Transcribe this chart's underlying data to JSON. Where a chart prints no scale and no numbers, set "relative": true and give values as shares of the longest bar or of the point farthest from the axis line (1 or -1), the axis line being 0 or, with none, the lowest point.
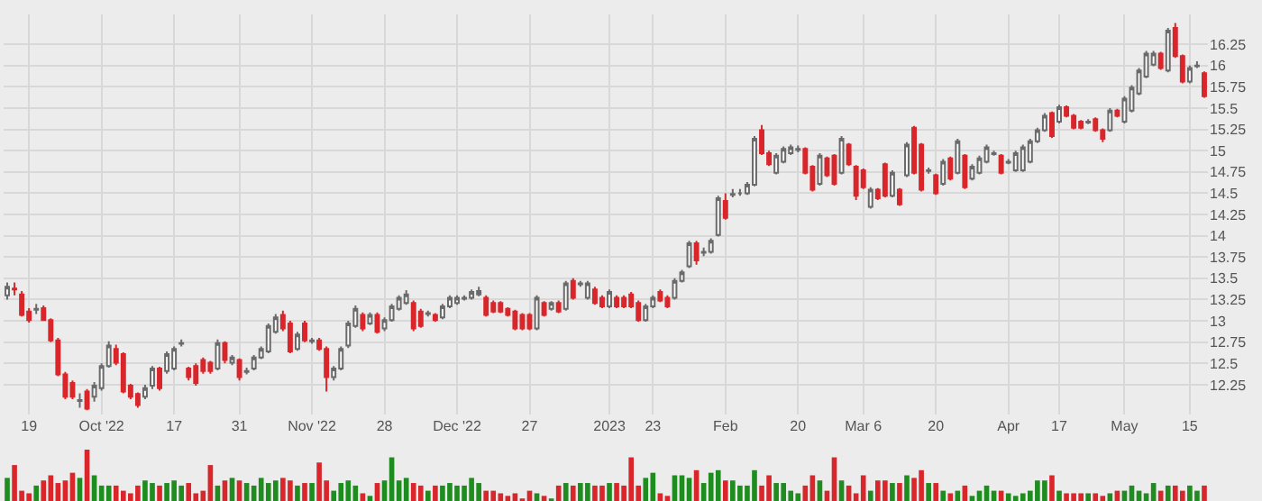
{
  "chart_data": [
    {
      "type": "candlestick",
      "grid": true,
      "legend": false,
      "categories": [
        null,
        null,
        null,
        "19",
        null,
        null,
        null,
        null,
        null,
        null,
        null,
        null,
        null,
        "Oct '22",
        null,
        null,
        null,
        null,
        null,
        null,
        null,
        null,
        null,
        "17",
        null,
        null,
        null,
        null,
        null,
        null,
        null,
        null,
        "31",
        null,
        null,
        null,
        null,
        null,
        null,
        null,
        null,
        null,
        "Nov '22",
        null,
        null,
        null,
        null,
        null,
        null,
        null,
        null,
        null,
        "28",
        null,
        null,
        null,
        null,
        null,
        null,
        null,
        null,
        null,
        "Dec '22",
        null,
        null,
        null,
        null,
        null,
        null,
        null,
        null,
        null,
        "27",
        null,
        null,
        null,
        null,
        null,
        null,
        null,
        null,
        null,
        null,
        "2023",
        null,
        null,
        null,
        null,
        null,
        "23",
        null,
        null,
        null,
        null,
        null,
        null,
        null,
        null,
        null,
        "Feb",
        null,
        null,
        null,
        null,
        null,
        null,
        null,
        null,
        null,
        "20",
        null,
        null,
        null,
        null,
        null,
        null,
        null,
        null,
        "Mar 6",
        null,
        null,
        null,
        null,
        null,
        null,
        null,
        null,
        null,
        "20",
        null,
        null,
        null,
        null,
        null,
        null,
        null,
        null,
        null,
        "Apr",
        null,
        null,
        null,
        null,
        null,
        null,
        "17",
        null,
        null,
        null,
        null,
        null,
        null,
        null,
        null,
        "May",
        null,
        null,
        null,
        null,
        null,
        null,
        null,
        null,
        "15",
        null,
        null
      ],
      "ylim": [
        11.9,
        16.6
      ],
      "yticks": [
        12.25,
        12.5,
        12.75,
        13,
        13.25,
        13.5,
        13.75,
        14,
        14.25,
        14.5,
        14.75,
        15,
        15.25,
        15.5,
        15.75,
        16,
        16.25
      ],
      "ohlc": [
        [
          13.3,
          13.45,
          13.25,
          13.4
        ],
        [
          13.38,
          13.45,
          13.3,
          13.37
        ],
        [
          13.31,
          13.35,
          13.05,
          13.07
        ],
        [
          13.11,
          13.15,
          12.98,
          13.01
        ],
        [
          13.13,
          13.2,
          13.08,
          13.14
        ],
        [
          13.15,
          13.18,
          13.0,
          13.01
        ],
        [
          13.01,
          13.03,
          12.75,
          12.77
        ],
        [
          12.77,
          12.8,
          12.35,
          12.37
        ],
        [
          12.37,
          12.4,
          12.08,
          12.11
        ],
        [
          12.27,
          12.3,
          12.08,
          12.11
        ],
        [
          12.06,
          12.15,
          11.98,
          12.07
        ],
        [
          12.17,
          12.2,
          11.95,
          11.97
        ],
        [
          12.11,
          12.28,
          12.05,
          12.24
        ],
        [
          12.21,
          12.5,
          12.18,
          12.47
        ],
        [
          12.47,
          12.76,
          12.45,
          12.71
        ],
        [
          12.67,
          12.72,
          12.48,
          12.51
        ],
        [
          12.61,
          12.63,
          12.15,
          12.17
        ],
        [
          12.24,
          12.26,
          12.08,
          12.11
        ],
        [
          12.14,
          12.16,
          11.98,
          12.01
        ],
        [
          12.11,
          12.25,
          12.08,
          12.21
        ],
        [
          12.24,
          12.47,
          12.2,
          12.44
        ],
        [
          12.44,
          12.46,
          12.18,
          12.21
        ],
        [
          12.41,
          12.64,
          12.38,
          12.61
        ],
        [
          12.44,
          12.7,
          12.42,
          12.67
        ],
        [
          12.73,
          12.78,
          12.7,
          12.74
        ],
        [
          12.44,
          12.46,
          12.3,
          12.34
        ],
        [
          12.47,
          12.5,
          12.24,
          12.27
        ],
        [
          12.54,
          12.57,
          12.38,
          12.41
        ],
        [
          12.51,
          12.53,
          12.38,
          12.41
        ],
        [
          12.44,
          12.78,
          12.42,
          12.74
        ],
        [
          12.74,
          12.76,
          12.5,
          12.54
        ],
        [
          12.51,
          12.6,
          12.48,
          12.57
        ],
        [
          12.54,
          12.56,
          12.3,
          12.34
        ],
        [
          12.4,
          12.45,
          12.37,
          12.41
        ],
        [
          12.44,
          12.6,
          12.42,
          12.57
        ],
        [
          12.57,
          12.7,
          12.55,
          12.67
        ],
        [
          12.64,
          12.97,
          12.62,
          12.94
        ],
        [
          12.87,
          13.08,
          12.85,
          13.04
        ],
        [
          13.07,
          13.12,
          12.88,
          12.91
        ],
        [
          12.97,
          13.0,
          12.62,
          12.64
        ],
        [
          12.67,
          12.87,
          12.65,
          12.84
        ],
        [
          12.97,
          13.0,
          12.75,
          12.77
        ],
        [
          12.76,
          12.8,
          12.73,
          12.77
        ],
        [
          12.77,
          12.8,
          12.65,
          12.67
        ],
        [
          12.67,
          12.7,
          12.17,
          12.34
        ],
        [
          12.34,
          12.47,
          12.3,
          12.44
        ],
        [
          12.44,
          12.7,
          12.42,
          12.67
        ],
        [
          12.71,
          13.0,
          12.68,
          12.97
        ],
        [
          12.94,
          13.18,
          12.92,
          13.14
        ],
        [
          13.07,
          13.1,
          12.88,
          12.91
        ],
        [
          12.97,
          13.1,
          12.95,
          13.07
        ],
        [
          13.07,
          13.1,
          12.85,
          12.87
        ],
        [
          12.91,
          13.04,
          12.88,
          13.01
        ],
        [
          13.01,
          13.2,
          12.99,
          13.17
        ],
        [
          13.14,
          13.3,
          13.12,
          13.27
        ],
        [
          13.21,
          13.36,
          13.19,
          13.31
        ],
        [
          13.21,
          13.24,
          12.88,
          12.91
        ],
        [
          13.11,
          13.14,
          12.92,
          12.94
        ],
        [
          13.08,
          13.12,
          13.05,
          13.09
        ],
        [
          13.07,
          13.09,
          12.99,
          13.01
        ],
        [
          13.04,
          13.2,
          13.02,
          13.17
        ],
        [
          13.17,
          13.3,
          13.15,
          13.27
        ],
        [
          13.21,
          13.3,
          13.19,
          13.27
        ],
        [
          13.26,
          13.3,
          13.24,
          13.27
        ],
        [
          13.27,
          13.37,
          13.25,
          13.34
        ],
        [
          13.31,
          13.4,
          13.29,
          13.35
        ],
        [
          13.27,
          13.3,
          13.05,
          13.07
        ],
        [
          13.21,
          13.24,
          13.09,
          13.11
        ],
        [
          13.21,
          13.23,
          13.09,
          13.11
        ],
        [
          13.14,
          13.16,
          13.05,
          13.07
        ],
        [
          13.11,
          13.13,
          12.89,
          12.91
        ],
        [
          13.07,
          13.09,
          12.89,
          12.91
        ],
        [
          13.07,
          13.09,
          12.89,
          12.91
        ],
        [
          12.91,
          13.3,
          12.89,
          13.27
        ],
        [
          13.21,
          13.23,
          13.05,
          13.07
        ],
        [
          13.14,
          13.23,
          13.12,
          13.21
        ],
        [
          13.21,
          13.24,
          13.09,
          13.11
        ],
        [
          13.14,
          13.47,
          13.12,
          13.44
        ],
        [
          13.47,
          13.5,
          13.25,
          13.27
        ],
        [
          13.43,
          13.47,
          13.4,
          13.44
        ],
        [
          13.27,
          13.47,
          13.25,
          13.44
        ],
        [
          13.37,
          13.4,
          13.19,
          13.21
        ],
        [
          13.27,
          13.3,
          13.15,
          13.17
        ],
        [
          13.17,
          13.37,
          13.15,
          13.34
        ],
        [
          13.27,
          13.3,
          13.15,
          13.17
        ],
        [
          13.27,
          13.3,
          13.15,
          13.17
        ],
        [
          13.31,
          13.34,
          13.15,
          13.17
        ],
        [
          13.21,
          13.24,
          12.99,
          13.01
        ],
        [
          13.01,
          13.2,
          12.99,
          13.17
        ],
        [
          13.17,
          13.3,
          13.15,
          13.27
        ],
        [
          13.34,
          13.37,
          13.22,
          13.24
        ],
        [
          13.27,
          13.3,
          13.15,
          13.17
        ],
        [
          13.27,
          13.5,
          13.25,
          13.47
        ],
        [
          13.47,
          13.6,
          13.45,
          13.57
        ],
        [
          13.64,
          13.94,
          13.62,
          13.91
        ],
        [
          13.91,
          13.94,
          13.66,
          13.71
        ],
        [
          13.8,
          13.86,
          13.76,
          13.81
        ],
        [
          13.81,
          13.97,
          13.79,
          13.94
        ],
        [
          14.01,
          14.47,
          13.99,
          14.44
        ],
        [
          14.41,
          14.5,
          14.19,
          14.21
        ],
        [
          14.48,
          14.55,
          14.45,
          14.49
        ],
        [
          14.5,
          14.55,
          14.47,
          14.5
        ],
        [
          14.5,
          14.63,
          14.48,
          14.6
        ],
        [
          14.6,
          15.17,
          14.58,
          15.14
        ],
        [
          15.24,
          15.3,
          14.95,
          14.97
        ],
        [
          14.97,
          15.0,
          14.82,
          14.84
        ],
        [
          14.74,
          14.97,
          14.72,
          14.94
        ],
        [
          14.87,
          15.05,
          14.85,
          15.02
        ],
        [
          14.97,
          15.07,
          14.95,
          15.04
        ],
        [
          15.01,
          15.06,
          14.98,
          15.02
        ],
        [
          15.02,
          15.04,
          14.72,
          14.74
        ],
        [
          14.81,
          14.83,
          14.52,
          14.54
        ],
        [
          14.61,
          14.97,
          14.59,
          14.94
        ],
        [
          14.91,
          14.93,
          14.69,
          14.71
        ],
        [
          14.94,
          14.96,
          14.59,
          14.61
        ],
        [
          14.74,
          15.17,
          14.72,
          15.14
        ],
        [
          15.07,
          15.09,
          14.82,
          14.84
        ],
        [
          14.81,
          14.83,
          14.42,
          14.47
        ],
        [
          14.77,
          14.79,
          14.55,
          14.57
        ],
        [
          14.34,
          14.57,
          14.32,
          14.54
        ],
        [
          14.54,
          14.56,
          14.42,
          14.44
        ],
        [
          14.84,
          14.86,
          14.45,
          14.47
        ],
        [
          14.47,
          14.77,
          14.45,
          14.74
        ],
        [
          14.54,
          14.56,
          14.35,
          14.37
        ],
        [
          14.71,
          15.1,
          14.69,
          15.07
        ],
        [
          15.27,
          15.29,
          14.72,
          14.74
        ],
        [
          15.07,
          15.09,
          14.52,
          14.54
        ],
        [
          14.76,
          14.8,
          14.73,
          14.77
        ],
        [
          14.71,
          14.73,
          14.48,
          14.5
        ],
        [
          14.61,
          14.9,
          14.59,
          14.87
        ],
        [
          14.91,
          14.93,
          14.65,
          14.67
        ],
        [
          14.74,
          15.14,
          14.72,
          15.11
        ],
        [
          14.94,
          14.96,
          14.55,
          14.57
        ],
        [
          14.67,
          14.84,
          14.65,
          14.81
        ],
        [
          14.74,
          14.94,
          14.72,
          14.91
        ],
        [
          14.87,
          15.07,
          14.85,
          15.04
        ],
        [
          14.96,
          15.0,
          14.94,
          14.97
        ],
        [
          14.94,
          14.96,
          14.72,
          14.74
        ],
        [
          14.86,
          14.9,
          14.84,
          14.87
        ],
        [
          14.77,
          15.0,
          14.75,
          14.97
        ],
        [
          14.77,
          15.07,
          14.75,
          15.04
        ],
        [
          14.87,
          15.14,
          14.85,
          15.11
        ],
        [
          15.11,
          15.27,
          15.09,
          15.24
        ],
        [
          15.24,
          15.44,
          15.22,
          15.41
        ],
        [
          15.44,
          15.46,
          15.15,
          15.17
        ],
        [
          15.34,
          15.54,
          15.32,
          15.51
        ],
        [
          15.51,
          15.53,
          15.39,
          15.41
        ],
        [
          15.41,
          15.43,
          15.25,
          15.27
        ],
        [
          15.34,
          15.36,
          15.25,
          15.27
        ],
        [
          15.33,
          15.37,
          15.31,
          15.34
        ],
        [
          15.37,
          15.39,
          15.22,
          15.24
        ],
        [
          15.24,
          15.26,
          15.1,
          15.14
        ],
        [
          15.24,
          15.5,
          15.22,
          15.47
        ],
        [
          15.47,
          15.49,
          15.39,
          15.41
        ],
        [
          15.34,
          15.64,
          15.32,
          15.61
        ],
        [
          15.47,
          15.77,
          15.45,
          15.74
        ],
        [
          15.67,
          15.97,
          15.65,
          15.94
        ],
        [
          15.87,
          16.17,
          15.85,
          16.14
        ],
        [
          16.01,
          16.17,
          15.99,
          16.14
        ],
        [
          16.14,
          16.16,
          15.95,
          15.97
        ],
        [
          15.94,
          16.44,
          15.92,
          16.41
        ],
        [
          16.44,
          16.5,
          16.09,
          16.11
        ],
        [
          16.11,
          16.13,
          15.79,
          15.81
        ],
        [
          15.81,
          16.0,
          15.79,
          15.97
        ],
        [
          15.99,
          16.05,
          15.97,
          16.0
        ],
        [
          15.91,
          15.93,
          15.62,
          15.64
        ]
      ]
    },
    {
      "type": "bar",
      "relative": true,
      "categories": [
        null,
        null,
        null,
        null,
        null,
        null,
        null,
        null,
        null,
        null,
        null,
        null,
        null,
        null,
        null,
        null,
        null,
        null,
        null,
        null,
        null,
        null,
        null,
        null,
        null,
        null,
        null,
        null,
        null,
        null,
        null,
        null,
        null,
        null,
        null,
        null,
        null,
        null,
        null,
        null,
        null,
        null,
        null,
        null,
        null,
        null,
        null,
        null,
        null,
        null,
        null,
        null,
        null,
        null,
        null,
        null,
        null,
        null,
        null,
        null,
        null,
        null,
        null,
        null,
        null,
        null,
        null,
        null,
        null,
        null,
        null,
        null,
        null,
        null,
        null,
        null,
        null,
        null,
        null,
        null,
        null,
        null,
        null,
        null,
        null,
        null,
        null,
        null,
        null,
        null,
        null,
        null,
        null,
        null,
        null,
        null,
        null,
        null,
        null,
        null,
        null,
        null,
        null,
        null,
        null,
        null,
        null,
        null,
        null,
        null,
        null,
        null,
        null,
        null,
        null,
        null,
        null,
        null,
        null,
        null,
        null,
        null,
        null,
        null,
        null,
        null,
        null,
        null,
        null,
        null,
        null,
        null,
        null,
        null,
        null,
        null,
        null,
        null,
        null,
        null,
        null,
        null,
        null,
        null,
        null,
        null,
        null,
        null,
        null,
        null,
        null,
        null,
        null,
        null,
        null,
        null,
        null,
        null,
        null,
        null,
        null,
        null,
        null,
        null,
        null,
        null
      ],
      "values": [
        0.45,
        0.7,
        0.2,
        0.15,
        0.3,
        0.4,
        0.5,
        0.35,
        0.4,
        0.55,
        0.45,
        1.0,
        0.5,
        0.3,
        0.3,
        0.3,
        0.2,
        0.15,
        0.3,
        0.4,
        0.35,
        0.3,
        0.35,
        0.4,
        0.3,
        0.35,
        0.15,
        0.2,
        0.7,
        0.3,
        0.4,
        0.45,
        0.4,
        0.35,
        0.3,
        0.45,
        0.35,
        0.4,
        0.45,
        0.4,
        0.3,
        0.35,
        0.35,
        0.75,
        0.4,
        0.2,
        0.35,
        0.4,
        0.3,
        0.15,
        0.1,
        0.35,
        0.4,
        0.85,
        0.4,
        0.45,
        0.35,
        0.3,
        0.2,
        0.3,
        0.3,
        0.35,
        0.3,
        0.3,
        0.45,
        0.35,
        0.2,
        0.2,
        0.15,
        0.1,
        0.15,
        0.05,
        0.2,
        0.15,
        0.1,
        0.05,
        0.3,
        0.35,
        0.3,
        0.35,
        0.35,
        0.3,
        0.3,
        0.35,
        0.35,
        0.3,
        0.85,
        0.3,
        0.45,
        0.55,
        0.15,
        0.1,
        0.5,
        0.5,
        0.45,
        0.6,
        0.35,
        0.55,
        0.6,
        0.4,
        0.4,
        0.3,
        0.3,
        0.6,
        0.3,
        0.5,
        0.35,
        0.35,
        0.2,
        0.15,
        0.3,
        0.5,
        0.4,
        0.2,
        0.85,
        0.4,
        0.3,
        0.15,
        0.5,
        0.2,
        0.4,
        0.4,
        0.35,
        0.35,
        0.5,
        0.45,
        0.6,
        0.35,
        0.35,
        0.2,
        0.15,
        0.2,
        0.3,
        0.1,
        0.2,
        0.3,
        0.2,
        0.2,
        0.15,
        0.1,
        0.15,
        0.2,
        0.4,
        0.4,
        0.5,
        0.2,
        0.15,
        0.15,
        0.15,
        0.15,
        0.15,
        0.1,
        0.15,
        0.2,
        0.2,
        0.3,
        0.2,
        0.15,
        0.35,
        0.2,
        0.3,
        0.3,
        0.2,
        0.3,
        0.2,
        0.3
      ],
      "colors": [
        "#1e8c1e",
        "#d9262b",
        "#d9262b",
        "#d9262b",
        "#1e8c1e",
        "#d9262b",
        "#d9262b",
        "#d9262b",
        "#d9262b",
        "#d9262b",
        "#1e8c1e",
        "#d9262b",
        "#1e8c1e",
        "#1e8c1e",
        "#1e8c1e",
        "#d9262b",
        "#d9262b",
        "#d9262b",
        "#d9262b",
        "#1e8c1e",
        "#1e8c1e",
        "#d9262b",
        "#1e8c1e",
        "#1e8c1e",
        "#1e8c1e",
        "#d9262b",
        "#d9262b",
        "#d9262b",
        "#d9262b",
        "#1e8c1e",
        "#d9262b",
        "#1e8c1e",
        "#d9262b",
        "#1e8c1e",
        "#1e8c1e",
        "#1e8c1e",
        "#1e8c1e",
        "#1e8c1e",
        "#d9262b",
        "#d9262b",
        "#1e8c1e",
        "#d9262b",
        "#1e8c1e",
        "#d9262b",
        "#d9262b",
        "#1e8c1e",
        "#1e8c1e",
        "#1e8c1e",
        "#1e8c1e",
        "#d9262b",
        "#1e8c1e",
        "#d9262b",
        "#1e8c1e",
        "#1e8c1e",
        "#1e8c1e",
        "#1e8c1e",
        "#d9262b",
        "#d9262b",
        "#1e8c1e",
        "#d9262b",
        "#1e8c1e",
        "#1e8c1e",
        "#1e8c1e",
        "#1e8c1e",
        "#1e8c1e",
        "#1e8c1e",
        "#d9262b",
        "#d9262b",
        "#d9262b",
        "#d9262b",
        "#d9262b",
        "#d9262b",
        "#d9262b",
        "#1e8c1e",
        "#d9262b",
        "#1e8c1e",
        "#d9262b",
        "#1e8c1e",
        "#d9262b",
        "#1e8c1e",
        "#1e8c1e",
        "#d9262b",
        "#d9262b",
        "#1e8c1e",
        "#d9262b",
        "#d9262b",
        "#d9262b",
        "#d9262b",
        "#1e8c1e",
        "#1e8c1e",
        "#d9262b",
        "#d9262b",
        "#1e8c1e",
        "#1e8c1e",
        "#1e8c1e",
        "#d9262b",
        "#1e8c1e",
        "#1e8c1e",
        "#1e8c1e",
        "#d9262b",
        "#1e8c1e",
        "#1e8c1e",
        "#1e8c1e",
        "#1e8c1e",
        "#d9262b",
        "#d9262b",
        "#1e8c1e",
        "#1e8c1e",
        "#1e8c1e",
        "#1e8c1e",
        "#d9262b",
        "#d9262b",
        "#1e8c1e",
        "#d9262b",
        "#d9262b",
        "#1e8c1e",
        "#d9262b",
        "#d9262b",
        "#d9262b",
        "#1e8c1e",
        "#d9262b",
        "#d9262b",
        "#1e8c1e",
        "#d9262b",
        "#1e8c1e",
        "#d9262b",
        "#d9262b",
        "#1e8c1e",
        "#d9262b",
        "#1e8c1e",
        "#d9262b",
        "#1e8c1e",
        "#d9262b",
        "#1e8c1e",
        "#1e8c1e",
        "#1e8c1e",
        "#1e8c1e",
        "#d9262b",
        "#1e8c1e",
        "#1e8c1e",
        "#1e8c1e",
        "#1e8c1e",
        "#1e8c1e",
        "#1e8c1e",
        "#d9262b",
        "#1e8c1e",
        "#d9262b",
        "#d9262b",
        "#d9262b",
        "#1e8c1e",
        "#d9262b",
        "#d9262b",
        "#1e8c1e",
        "#d9262b",
        "#1e8c1e",
        "#1e8c1e",
        "#1e8c1e",
        "#1e8c1e",
        "#1e8c1e",
        "#d9262b",
        "#1e8c1e",
        "#d9262b",
        "#d9262b",
        "#1e8c1e",
        "#1e8c1e",
        "#d9262b"
      ]
    }
  ]
}
